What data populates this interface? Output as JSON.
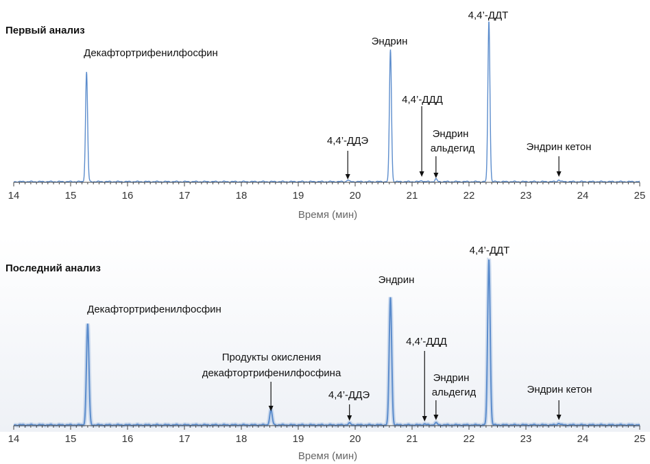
{
  "chart_data": [
    {
      "type": "line",
      "title": "Первый анализ",
      "xlabel": "Время (мин)",
      "ylabel": "",
      "xlim": [
        14,
        25
      ],
      "ylim": [
        0,
        100
      ],
      "xticks": [
        14,
        15,
        16,
        17,
        18,
        19,
        20,
        21,
        22,
        23,
        24,
        25
      ],
      "grid": false,
      "series": [
        {
          "color": "#5b8ccc",
          "peaks": [
            {
              "x": 15.28,
              "y": 68,
              "label": "Декафтортрифенилфосфин",
              "arrow": false
            },
            {
              "x": 19.87,
              "y": 1.0,
              "label": "4,4’-ДДЭ",
              "arrow": true
            },
            {
              "x": 20.62,
              "y": 82,
              "label": "Эндрин",
              "arrow": false
            },
            {
              "x": 21.17,
              "y": 0.8,
              "label": "4,4’-ДДД",
              "arrow": true
            },
            {
              "x": 21.42,
              "y": 1.6,
              "label": "Эндрин альдегид",
              "arrow": true
            },
            {
              "x": 22.35,
              "y": 100,
              "label": "4,4’-ДДТ",
              "arrow": false
            },
            {
              "x": 23.58,
              "y": 1.2,
              "label": "Эндрин кетон",
              "arrow": true
            }
          ]
        }
      ]
    },
    {
      "type": "line",
      "title": "Последний анализ",
      "xlabel": "Время (мин)",
      "ylabel": "",
      "xlim": [
        14,
        25
      ],
      "ylim": [
        0,
        100
      ],
      "xticks": [
        14,
        15,
        16,
        17,
        18,
        19,
        20,
        21,
        22,
        23,
        24,
        25
      ],
      "grid": false,
      "series": [
        {
          "color": "#5b8ccc",
          "peaks": [
            {
              "x": 15.3,
              "y": 61,
              "label": "Декафтортрифенилфосфин",
              "arrow": false
            },
            {
              "x": 18.52,
              "y": 9,
              "label": "Продукты окисления декафтортрифенилфосфина",
              "arrow": true
            },
            {
              "x": 19.9,
              "y": 1.0,
              "label": "4,4’-ДДЭ",
              "arrow": true
            },
            {
              "x": 20.62,
              "y": 77,
              "label": "Эндрин",
              "arrow": false
            },
            {
              "x": 21.22,
              "y": 0.6,
              "label": "4,4’-ДДД",
              "arrow": true
            },
            {
              "x": 21.42,
              "y": 1.2,
              "label": "Эндрин альдегид",
              "arrow": true
            },
            {
              "x": 22.35,
              "y": 100,
              "label": "4,4’-ДДТ",
              "arrow": false
            },
            {
              "x": 23.58,
              "y": 1.0,
              "label": "Эндрин кетон",
              "arrow": true
            }
          ]
        }
      ]
    }
  ]
}
